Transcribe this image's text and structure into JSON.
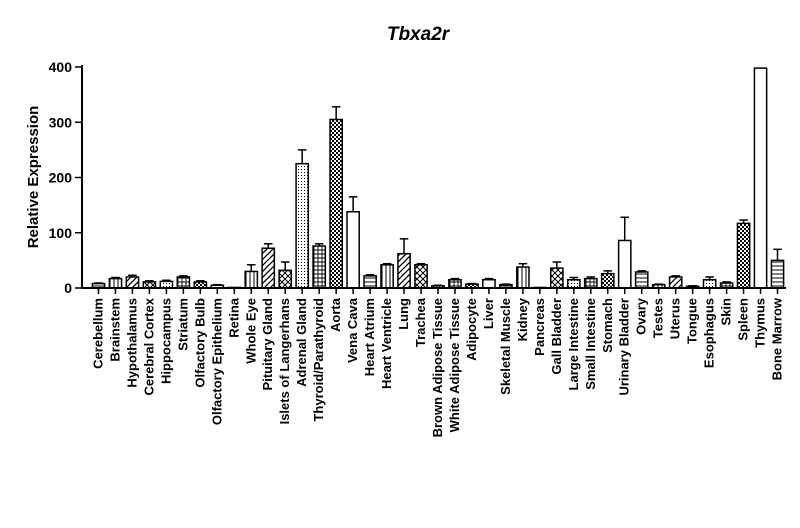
{
  "chart_data": {
    "type": "bar",
    "title": "Tbxa2r",
    "xlabel": "",
    "ylabel": "Relative Expression",
    "ylim": [
      0,
      400
    ],
    "yticks": [
      0,
      100,
      200,
      300,
      400
    ],
    "grid": false,
    "legend": "none",
    "categories": [
      "Cerebellum",
      "Brainstem",
      "Hypothalamus",
      "Cerebral Cortex",
      "Hippocampus",
      "Striatum",
      "Olfactory Bulb",
      "Olfactory Epithelium",
      "Retina",
      "Whole Eye",
      "Pituitary Gland",
      "Islets of Langerhans",
      "Adrenal Gland",
      "Thyroid/Parathyroid",
      "Aorta",
      "Vena Cava",
      "Heart Atrium",
      "Heart Ventricle",
      "Lung",
      "Trachea",
      "Brown Adipose Tissue",
      "White Adipose Tissue",
      "Adipocyte",
      "Liver",
      "Skeletal Muscle",
      "Kidney",
      "Pancreas",
      "Gall Bladder",
      "Large Intestine",
      "Small Intestine",
      "Stomach",
      "Urinary Bladder",
      "Ovary",
      "Testes",
      "Uterus",
      "Tongue",
      "Esophagus",
      "Skin",
      "Spleen",
      "Thymus",
      "Bone Marrow"
    ],
    "values": [
      8,
      17,
      20,
      11,
      12,
      20,
      11,
      5,
      1,
      30,
      72,
      32,
      225,
      76,
      305,
      138,
      22,
      42,
      62,
      42,
      4,
      15,
      7,
      15,
      6,
      38,
      1,
      36,
      15,
      17,
      26,
      86,
      29,
      6,
      20,
      3,
      15,
      9,
      117,
      398,
      50
    ],
    "errors": [
      1,
      2,
      3,
      2,
      2,
      2,
      2,
      1,
      0,
      12,
      8,
      15,
      25,
      4,
      23,
      27,
      2,
      2,
      27,
      2,
      1,
      2,
      1,
      2,
      1,
      6,
      0,
      11,
      4,
      3,
      5,
      42,
      2,
      1,
      2,
      1,
      5,
      2,
      6,
      0,
      20
    ]
  }
}
